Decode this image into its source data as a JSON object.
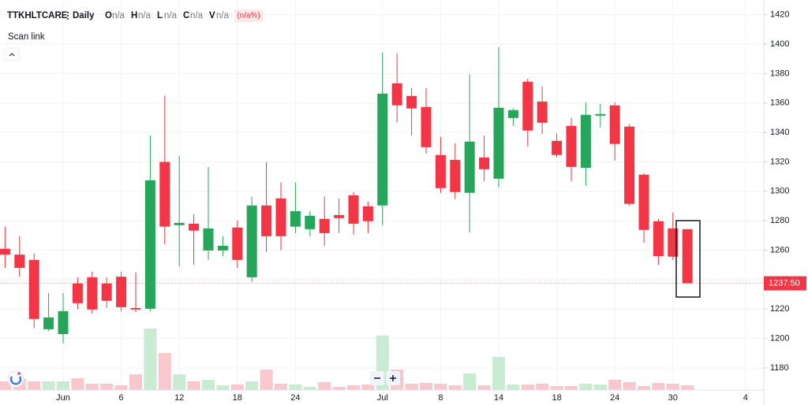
{
  "chart_data": {
    "type": "candlestick",
    "title": "TTKHLTCARE",
    "interval": "Daily",
    "legend": [
      {
        "key": "O",
        "value": "n/a"
      },
      {
        "key": "H",
        "value": "n/a"
      },
      {
        "key": "L",
        "value": "n/a"
      },
      {
        "key": "C",
        "value": "n/a"
      },
      {
        "key": "V",
        "value": "n/a"
      }
    ],
    "change": "(n/a%)",
    "scan_link": "Scan link",
    "categories": [
      null,
      null,
      null,
      null,
      "Jun",
      null,
      null,
      null,
      "6",
      null,
      null,
      null,
      "12",
      null,
      null,
      null,
      "18",
      null,
      null,
      null,
      "24",
      null,
      null,
      null,
      null,
      null,
      "Jul",
      null,
      null,
      null,
      "8",
      null,
      null,
      null,
      "14",
      null,
      null,
      null,
      "18",
      null,
      null,
      null,
      "24",
      null,
      null,
      null,
      "30",
      null,
      null,
      null,
      null,
      "4"
    ],
    "open": [
      1261,
      1257,
      1253.4,
      1206.3,
      1203,
      1237.4,
      1241.6,
      1237.4,
      1242,
      1220.7,
      1220.2,
      1320,
      1277,
      1278,
      1259.8,
      1259.8,
      1275.4,
      1241.6,
      1290.4,
      1295.2,
      1276,
      1274.3,
      1281.3,
      1283.9,
      1297.3,
      1289.8,
      1290.4,
      1373.4,
      1364.8,
      1357.3,
      1324.7,
      1321.4,
      1299,
      1323,
      1308.6,
      1349.8,
      1374.5,
      1361,
      1334.3,
      1344.5,
      1316,
      1351.4,
      1358.4,
      1344,
      1311.3,
      1279.7,
      1274.8,
      1274.3,
      null,
      null,
      null,
      null
    ],
    "high": [
      1276,
      1269.5,
      1258,
      1231,
      1231,
      1241.6,
      1245.4,
      1241.6,
      1245.4,
      1245,
      1338,
      1365,
      1324,
      1284.5,
      1316.6,
      1269.5,
      1280.2,
      1296.3,
      1320,
      1306,
      1306,
      1286.6,
      1296.3,
      1295.2,
      1299.5,
      1293,
      1394.3,
      1393.8,
      1370.2,
      1370.2,
      1337,
      1332.7,
      1379.3,
      1338,
      1398,
      1356.3,
      1376.6,
      1371.3,
      1339,
      1349.8,
      1360.5,
      1359.5,
      1360.5,
      1345.6,
      1312.3,
      1281.3,
      1285.6,
      1274.3,
      null,
      null,
      null,
      null
    ],
    "low": [
      1248,
      1242,
      1207,
      1205,
      1196.7,
      1220,
      1217,
      1221,
      1218.6,
      1218,
      1218.6,
      1264,
      1249,
      1250,
      1253.4,
      1256,
      1248,
      1238.4,
      1258.8,
      1260,
      1271.6,
      1269.5,
      1263,
      1271.6,
      1270.6,
      1271.6,
      1277,
      1347,
      1338,
      1325.7,
      1299,
      1294.7,
      1272,
      1307,
      1302.7,
      1344.5,
      1330.5,
      1339,
      1323,
      1307,
      1303.8,
      1343.4,
      1321,
      1290,
      1265,
      1250,
      1253.4,
      1237.5,
      null,
      null,
      null,
      null
    ],
    "close": [
      1257,
      1248,
      1213.3,
      1214.3,
      1218.6,
      1224,
      1219.7,
      1225.6,
      1221.3,
      1219.7,
      1307.5,
      1276,
      1278.6,
      1273.3,
      1274.8,
      1263,
      1253.4,
      1290.4,
      1269.5,
      1269.5,
      1286.6,
      1283.4,
      1271.6,
      1281.8,
      1278,
      1279.7,
      1366.4,
      1358.4,
      1356.3,
      1330,
      1302.2,
      1299.5,
      1333.8,
      1315,
      1356.8,
      1355.2,
      1341.3,
      1346.6,
      1324.7,
      1316.6,
      1352,
      1352.5,
      1332.2,
      1291.5,
      1273.8,
      1256,
      1255.6,
      1237.5,
      null,
      null,
      null,
      null
    ],
    "volume": [
      11,
      14,
      11,
      11,
      11,
      15,
      8,
      8,
      6,
      20,
      78,
      47,
      20,
      11,
      13,
      6,
      7,
      11,
      26,
      8,
      7,
      4,
      10,
      4,
      6,
      7,
      69,
      26,
      8,
      9,
      8,
      6,
      21,
      6,
      42,
      7,
      7,
      8,
      5,
      5,
      8,
      7,
      13,
      10,
      5,
      9,
      8,
      6,
      null,
      null,
      null,
      null
    ],
    "up_color": "#26a65b",
    "down_color": "#f23645",
    "volume_up_color": "#c9ead3",
    "volume_down_color": "#f9c8cf",
    "ylim": [
      1165,
      1430
    ],
    "yticks": [
      1180,
      1200,
      1220,
      1240,
      1260,
      1280,
      1300,
      1320,
      1340,
      1360,
      1380,
      1400,
      1420
    ],
    "last_price": {
      "value": 1237.5,
      "label": "1237.50"
    },
    "grid": true
  }
}
